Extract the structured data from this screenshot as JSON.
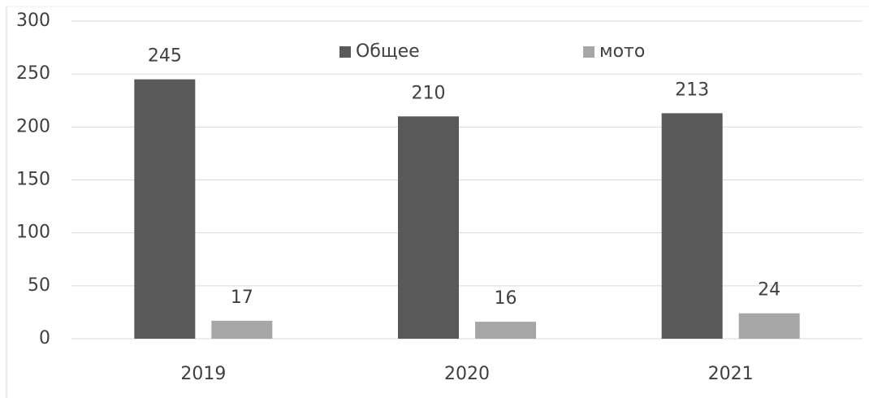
{
  "chart_data": {
    "type": "bar",
    "categories": [
      "2019",
      "2020",
      "2021"
    ],
    "series": [
      {
        "name": "Общее",
        "color": "#595959",
        "values": [
          245,
          210,
          213
        ]
      },
      {
        "name": "мото",
        "color": "#a6a6a6",
        "values": [
          17,
          16,
          24
        ]
      }
    ],
    "ylim": [
      0,
      300
    ],
    "yticks": [
      0,
      50,
      100,
      150,
      200,
      250,
      300
    ],
    "grid": true,
    "legend": "top"
  }
}
